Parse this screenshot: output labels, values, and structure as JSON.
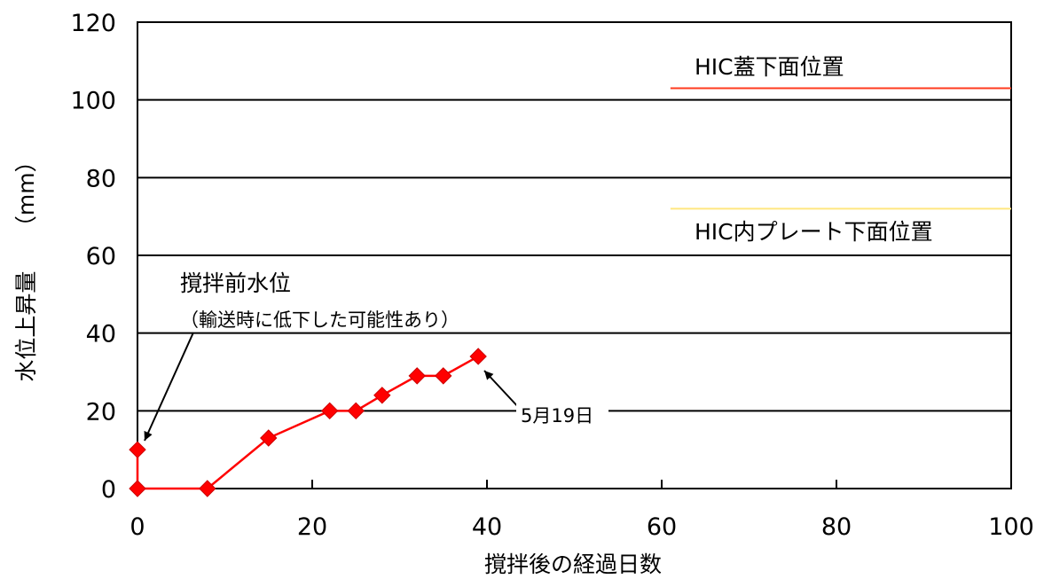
{
  "chart_data": {
    "type": "line",
    "xlabel": "撹拌後の経過日数",
    "ylabel": "水位上昇量　　（mm）",
    "xlim": [
      0,
      100
    ],
    "ylim": [
      0,
      120
    ],
    "xticks": [
      0,
      20,
      40,
      60,
      80,
      100
    ],
    "yticks": [
      0,
      20,
      40,
      60,
      80,
      100,
      120
    ],
    "grid": "horizontal",
    "series": [
      {
        "color": "#ff0000",
        "marker": "diamond",
        "x": [
          0,
          0,
          8,
          15,
          22,
          25,
          28,
          32,
          35,
          39
        ],
        "y": [
          10,
          0,
          0,
          13,
          20,
          20,
          24,
          29,
          29,
          34
        ]
      }
    ],
    "reference_lines": [
      {
        "label": "HIC蓋下面位置",
        "y": 103,
        "x_start": 61,
        "x_end": 100,
        "color": "#ff3b1f"
      },
      {
        "label": "HIC内プレート下面位置",
        "y": 72,
        "x_start": 61,
        "x_end": 100,
        "color": "#ffe680"
      }
    ],
    "annotations": [
      {
        "title": "撹拌前水位",
        "note": "（輸送時に低下した可能性あり）",
        "target": [
          0,
          10
        ]
      },
      {
        "text": "5月19日",
        "target": [
          39,
          34
        ]
      }
    ]
  }
}
